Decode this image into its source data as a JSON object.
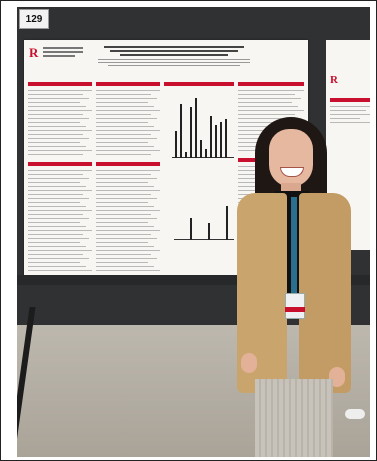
{
  "photo": {
    "booth_number": "129",
    "poster_logo_letter": "R",
    "second_poster_logo_letter": "R",
    "chart1_bars": [
      0.45,
      0.9,
      0.1,
      0.85,
      1.0,
      0.3,
      0.15,
      0.7,
      0.55,
      0.6,
      0.65
    ],
    "chart2_bars": [
      0.45,
      0.35,
      0.7
    ]
  },
  "colors": {
    "accent_red": "#c8102e",
    "blazer": "#c9a46c",
    "board": "#2f3133"
  }
}
